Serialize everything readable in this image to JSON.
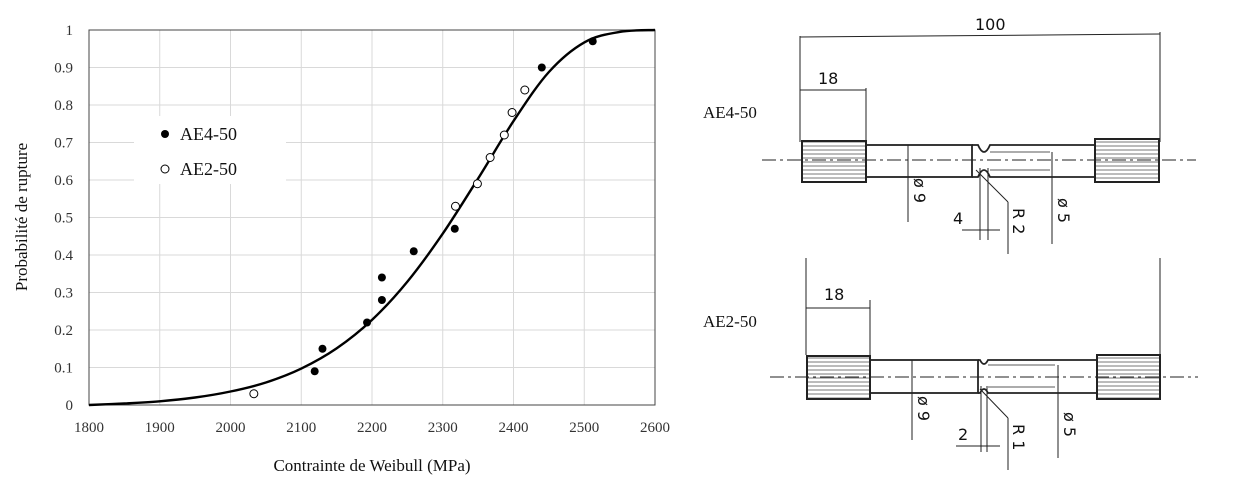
{
  "chart_data": {
    "type": "scatter",
    "title": "",
    "xlabel": "Contrainte de Weibull (MPa)",
    "ylabel": "Probabilité de rupture",
    "xlim": [
      1800,
      2600
    ],
    "ylim": [
      0,
      1
    ],
    "x_ticks": [
      "1800",
      "1900",
      "2000",
      "2100",
      "2200",
      "2300",
      "2400",
      "2500",
      "2600"
    ],
    "y_ticks": [
      "0",
      "0.1",
      "0.2",
      "0.3",
      "0.4",
      "0.5",
      "0.6",
      "0.7",
      "0.8",
      "0.9",
      "1"
    ],
    "grid": true,
    "legend_position": "left",
    "series": [
      {
        "name": "AE4-50",
        "marker": "filled-circle",
        "points": [
          {
            "x": 2119,
            "y": 0.09
          },
          {
            "x": 2130,
            "y": 0.15
          },
          {
            "x": 2193,
            "y": 0.22
          },
          {
            "x": 2214,
            "y": 0.28
          },
          {
            "x": 2214,
            "y": 0.34
          },
          {
            "x": 2259,
            "y": 0.41
          },
          {
            "x": 2317,
            "y": 0.47
          },
          {
            "x": 2440,
            "y": 0.9
          },
          {
            "x": 2512,
            "y": 0.97
          }
        ]
      },
      {
        "name": "AE2-50",
        "marker": "open-circle",
        "points": [
          {
            "x": 2033,
            "y": 0.03
          },
          {
            "x": 2318,
            "y": 0.53
          },
          {
            "x": 2349,
            "y": 0.59
          },
          {
            "x": 2367,
            "y": 0.66
          },
          {
            "x": 2387,
            "y": 0.72
          },
          {
            "x": 2398,
            "y": 0.78
          },
          {
            "x": 2416,
            "y": 0.84
          }
        ]
      },
      {
        "name": "",
        "type": "line",
        "points": [
          {
            "x": 1800,
            "y": 0.0
          },
          {
            "x": 1850,
            "y": 0.004
          },
          {
            "x": 1900,
            "y": 0.01
          },
          {
            "x": 1950,
            "y": 0.02
          },
          {
            "x": 2000,
            "y": 0.036
          },
          {
            "x": 2050,
            "y": 0.06
          },
          {
            "x": 2100,
            "y": 0.097
          },
          {
            "x": 2150,
            "y": 0.151
          },
          {
            "x": 2200,
            "y": 0.227
          },
          {
            "x": 2250,
            "y": 0.329
          },
          {
            "x": 2300,
            "y": 0.457
          },
          {
            "x": 2350,
            "y": 0.604
          },
          {
            "x": 2400,
            "y": 0.757
          },
          {
            "x": 2450,
            "y": 0.888
          },
          {
            "x": 2500,
            "y": 0.967
          },
          {
            "x": 2550,
            "y": 0.995
          },
          {
            "x": 2600,
            "y": 1.0
          }
        ]
      }
    ]
  },
  "drawing": {
    "specimens": [
      {
        "label": "AE4-50",
        "dims": {
          "length": "100",
          "grip": "18",
          "d_major": "ø 9",
          "notch_width": "4",
          "radius": "R 2",
          "d_minor": "ø 5"
        }
      },
      {
        "label": "AE2-50",
        "dims": {
          "grip": "18",
          "d_major": "ø 9",
          "notch_width": "2",
          "radius": "R 1",
          "d_minor": "ø 5"
        }
      }
    ]
  }
}
